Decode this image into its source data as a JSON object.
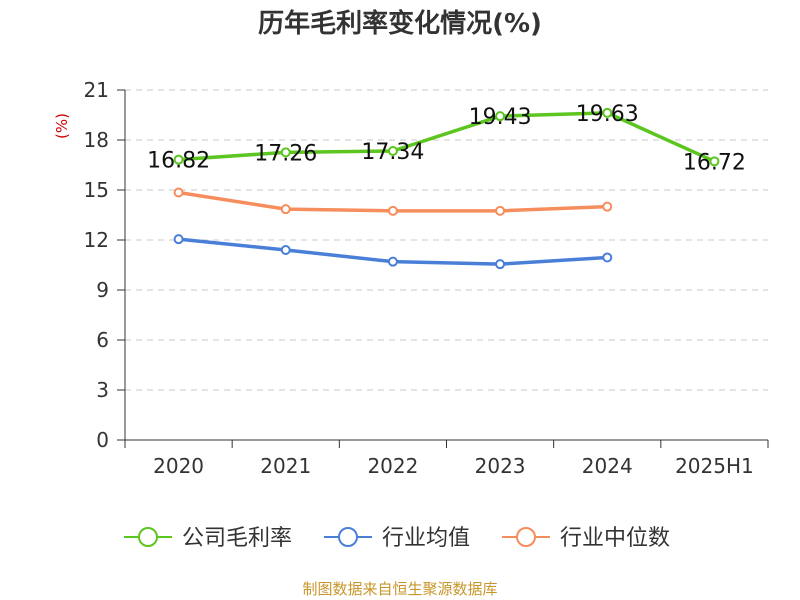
{
  "chart_data": {
    "type": "line",
    "title": "历年毛利率变化情况(%)",
    "ylabel": "(%)",
    "xlabel": "",
    "categories": [
      "2020",
      "2021",
      "2022",
      "2023",
      "2024",
      "2025H1"
    ],
    "y_ticks": [
      "0",
      "3",
      "6",
      "9",
      "12",
      "15",
      "18",
      "21"
    ],
    "ylim": [
      0,
      21
    ],
    "grid": true,
    "legend_position": "bottom",
    "series": [
      {
        "name": "公司毛利率",
        "color": "#5cc51f",
        "values": [
          16.82,
          17.26,
          17.34,
          19.43,
          19.63,
          16.72
        ],
        "labels": [
          "16.82",
          "17.26",
          "17.34",
          "19.43",
          "19.63",
          "16.72"
        ]
      },
      {
        "name": "行业均值",
        "color": "#4a7fd8",
        "values": [
          12.05,
          11.4,
          10.7,
          10.55,
          10.95,
          null
        ]
      },
      {
        "name": "行业中位数",
        "color": "#f58d5c",
        "values": [
          14.85,
          13.85,
          13.75,
          13.75,
          14.0,
          null
        ]
      }
    ]
  },
  "footer": {
    "source": "制图数据来自恒生聚源数据库"
  }
}
